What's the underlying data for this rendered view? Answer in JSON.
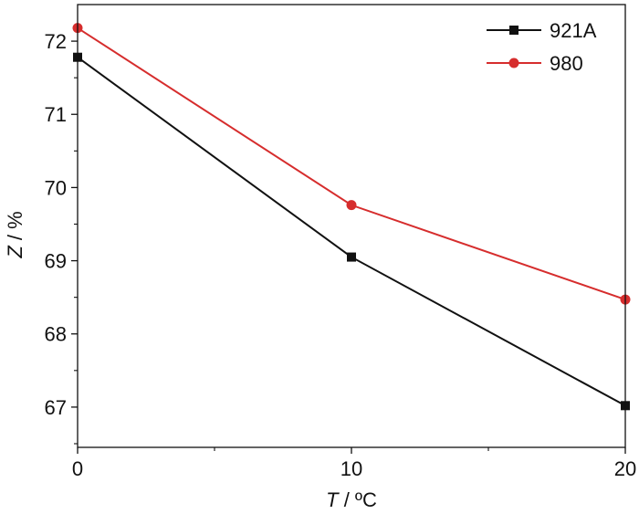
{
  "chart_data": {
    "type": "line",
    "x": [
      0,
      10,
      20
    ],
    "series": [
      {
        "name": "921A",
        "values": [
          71.78,
          69.05,
          67.02
        ],
        "color": "#111111",
        "marker": "square"
      },
      {
        "name": "980",
        "values": [
          72.18,
          69.76,
          68.47
        ],
        "color": "#d62d2d",
        "marker": "circle"
      }
    ],
    "xlabel": {
      "var": "T",
      "rest": " / ºC"
    },
    "ylabel": {
      "var": "Z",
      "rest": " / %"
    },
    "xlim": [
      0,
      20
    ],
    "ylim": [
      66.45,
      72.5
    ],
    "xticks": [
      0,
      10,
      20
    ],
    "xticklabels": [
      "0",
      "10",
      "20"
    ],
    "xminor": [
      5,
      15
    ],
    "yticks": [
      67,
      68,
      69,
      70,
      71,
      72
    ],
    "yticklabels": [
      "67",
      "68",
      "69",
      "70",
      "71",
      "72"
    ],
    "yminor": [
      66.5,
      67.5,
      68.5,
      69.5,
      70.5,
      71.5
    ],
    "grid": false,
    "legend_position": "top-right"
  }
}
